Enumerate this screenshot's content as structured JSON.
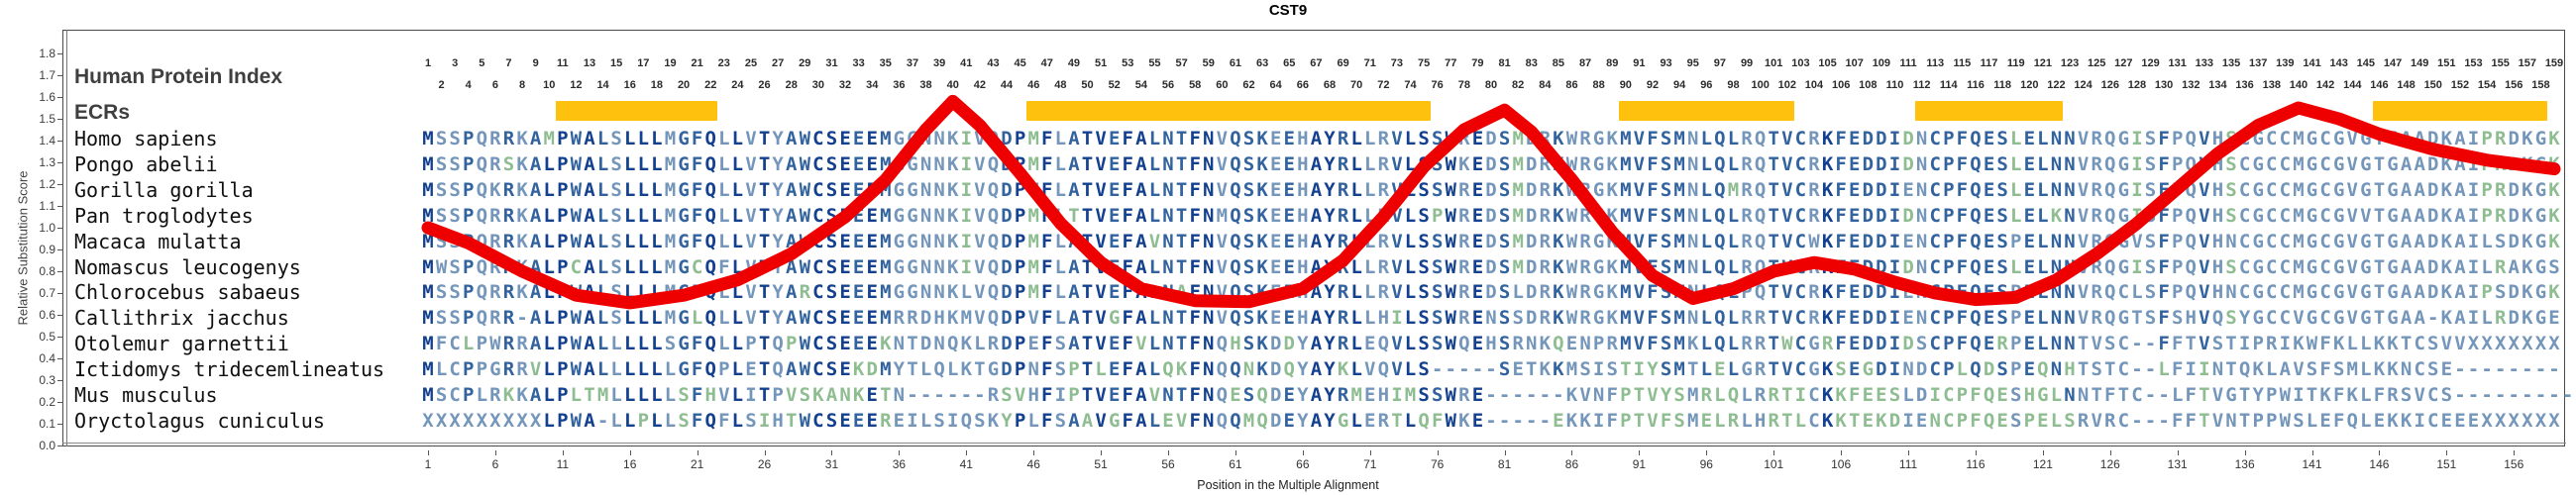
{
  "title": "CST9",
  "header": {
    "protein_index_label": "Human Protein Index",
    "ecrs_label": "ECRs"
  },
  "y_axis": {
    "label": "Relative Substitution Score",
    "ticks": [
      "1.8",
      "1.7",
      "1.6",
      "1.5",
      "1.4",
      "1.3",
      "1.2",
      "1.1",
      "1.0",
      "0.9",
      "0.8",
      "0.7",
      "0.6",
      "0.5",
      "0.4",
      "0.3",
      "0.2",
      "0.1",
      "0.0"
    ]
  },
  "x_axis": {
    "label": "Position in the Multiple Alignment",
    "ticks": [
      1,
      6,
      11,
      16,
      21,
      26,
      31,
      36,
      41,
      46,
      51,
      56,
      61,
      66,
      71,
      76,
      81,
      86,
      91,
      96,
      101,
      106,
      111,
      116,
      121,
      126,
      131,
      136,
      141,
      146,
      151,
      156
    ]
  },
  "position_numbers": {
    "odd": [
      1,
      3,
      5,
      7,
      9,
      11,
      13,
      15,
      17,
      19,
      21,
      23,
      25,
      27,
      29,
      31,
      33,
      35,
      37,
      39,
      41,
      43,
      45,
      47,
      49,
      51,
      53,
      55,
      57,
      59,
      61,
      63,
      65,
      67,
      69,
      71,
      73,
      75,
      77,
      79,
      81,
      83,
      85,
      87,
      89,
      91,
      93,
      95,
      97,
      99,
      101,
      103,
      105,
      107,
      109,
      111,
      113,
      115,
      117,
      119,
      121,
      123,
      125,
      127,
      129,
      131,
      133,
      135,
      137,
      139,
      141,
      143,
      145,
      147,
      149,
      151,
      153,
      155,
      157,
      159
    ],
    "even": [
      2,
      4,
      6,
      8,
      10,
      12,
      14,
      16,
      18,
      20,
      22,
      24,
      26,
      28,
      30,
      32,
      34,
      36,
      38,
      40,
      42,
      44,
      46,
      48,
      50,
      52,
      54,
      56,
      58,
      60,
      62,
      64,
      66,
      68,
      70,
      72,
      74,
      76,
      78,
      80,
      82,
      84,
      86,
      88,
      90,
      92,
      94,
      96,
      98,
      100,
      102,
      104,
      106,
      108,
      110,
      112,
      114,
      116,
      118,
      120,
      122,
      124,
      126,
      128,
      130,
      132,
      134,
      136,
      138,
      140,
      142,
      144,
      146,
      148,
      150,
      152,
      154,
      156,
      158
    ]
  },
  "ecr_bars": [
    {
      "start": 11,
      "end": 22
    },
    {
      "start": 46,
      "end": 75
    },
    {
      "start": 90,
      "end": 102
    },
    {
      "start": 112,
      "end": 122
    },
    {
      "start": 146,
      "end": 158
    }
  ],
  "alignment": {
    "species": [
      {
        "name": "Homo sapiens",
        "sequence": "MSSPQRRKAMPWALSLLLMGFQLLVTYAWCSEEEMGGNNKIVQDPMFLATVEFALNTFNVQSKEEHAYRLLRVLSSWREDSMDRKWRGKMVFSMNLQLRQTVCRKFEDDIDNCPFQESLELNNVRQGISFPQVHSCGCCMGCGVGTGAADKAIPRDKGK"
      },
      {
        "name": "Pongo abelii",
        "sequence": "MSSPQRSKALPWALSLLLMGFQLLVTYAWCSEEEMGGNNKIVQDPMFLATVEFALNTFNVQSKEEHAYRLLRVLSSWKEDSMDRKWRGKMVFSMNLQLRQTVCRKFEDDIDNCPFQESLELNNVRQGISFPQVHSCGCCMGCGVGTGAADKAIPRDKGK"
      },
      {
        "name": "Gorilla gorilla",
        "sequence": "MSSPQKRKALPWALSLLLMGFQLLVTYAWCSEEEMGGNNKIVQDPTFLATVEFALNTFNVQSKEEHAYRLLRVLSSWREDSMDRKWRGKMVFSMNLQMRQTVCRKFEDDIENCPFQESLELNNVRQGISFPQVHSCGCCMGCGVGTGAADKAIPRDKGK"
      },
      {
        "name": "Pan troglodytes",
        "sequence": "MSSPQRRKALPWALSLLLMGFQLLVTYAWCSEEEMGGNNKIVQDPMFLTTVEFALNTFNMQSKEEHAYRLLRVLSPWREDSMDRKWRGKMVFSMNLQLRQTVCRKFEDDIDNCPFQESLELKNVRQGISFPQVHSCGCCMGCGVVTGAADKAIPRDKGK"
      },
      {
        "name": "Macaca mulatta",
        "sequence": "MSSPQRRKALPWALSLLLMGFQLLVTYAWCSEEEMGGNNKIVQDPMFLATVEFAVNTFNVQSKEEHAYRLLRVLSSWREDSMDRKWRGKMVFSMNLQLRQTVCWKFEDDIENCPFQESPELNNVRQGVSFPQVHNCGCCMGCGVGTGAADKAILSDKGK"
      },
      {
        "name": "Nomascus leucogenys",
        "sequence": "MWSPQRRKALPCALSLLLMGCQFLVTYAWCSEEEMGGNNKIVQDPMFLATVEFALNTFNVQSKEEHAYRLLRVLSSWREDSMDRKWRGKMVFSMNLQLRQTVCRKFEDDIDNCPFQESLELNNVRQGISFPQVHSCGCCMGCGVGTGAADKAILRAKGS"
      },
      {
        "name": "Chlorocebus sabaeus",
        "sequence": "MSSPQRRKALPWALSLLLMGFQLLVTYARCSEEEMGGNNKLVQDPMFLATVEFALNAFNVQSKEEHAYRLLRVLSSWREDSLDRKWRGKMVFSMNLQLPQTVCRKFEDDIENCPFQESPELNNVRQCLSFPQVHNCGCCMGCGVGTGAADKAIPSDKGK"
      },
      {
        "name": "Callithrix jacchus",
        "sequence": "MSSPQRR-ALPWALSLLLMGLQLLVTYAWCSEEEMRRDHKMVQDPVFLATVGFALNTFNVQSKEEHAYRLLHILSSWRENSSDRKWRGKMVFSMNLQLRRTVCRKFEDDIENCPFQESPELNNVRQGTSFSHVQSYGCCVGCGVGTGAA-KAILRDKGE"
      },
      {
        "name": "Otolemur garnettii",
        "sequence": "MFCLPWRRALPWALLLLLSGFQLLPTQPWCSEEEKNTDNQKLRDPEFSATVEFVLNTFNQHSKDDYAYRLEQVLSSWQEHSRNKQENPRMVFSMKLQLRRTWCGRFEDDIDSCPFQERPELNNTVSC--FFTVSTIPRIKWFKLLKKTCSVVXXXXXXX"
      },
      {
        "name": "Ictidomys tridecemlineatus",
        "sequence": "MLCPPGRRVLPWALLLLLLGFQPLETQAWCSEKDMYTLQLKTGDPNFSPTLEFALQKFNQQNKDQYAYKLVQVLS-----SETKKMSISTIYSMTLELGRTVCGKSEGDINDCPLQDSPEQNHTSTC--LFIINTQKLAVSFSMLKKNCSE--------"
      },
      {
        "name": "Mus musculus",
        "sequence": "MSCPLRKKALPLTMLLLLLSFHVLITPVSKANKETN------RSVHFIPTVEFAVNTFNQESQDEYAYRMEHIMSSWRE------KVNFPTVYSMRLQLRRTICKKFEESLDICPFQESHGLNNTFTC--LFTVGTYPWITKFKLFRSVCS---------"
      },
      {
        "name": "Oryctolagus cuniculus",
        "sequence": "XXXXXXXXXLPWA-LLPLLSFQFLSIHTWCSEEEREILSIQSKYPLFSAAVGFALEVFNQQMQDEYAYGLERTLQFWKE-----EKKIFPTVFSMELRLHRTLCKKTEKDIENCPFQESPELSRVRC---FFTVNTPPWSLEFQLEKKICEEEXXXXXX"
      }
    ]
  },
  "chart_data": {
    "type": "line",
    "title": "CST9",
    "xlabel": "Position in the Multiple Alignment",
    "ylabel": "Relative Substitution Score",
    "xlim": [
      1,
      159
    ],
    "ylim": [
      0.0,
      1.8
    ],
    "grid": false,
    "series": [
      {
        "name": "relative-substitution-score-curve",
        "points": [
          [
            1,
            1.0
          ],
          [
            4,
            0.93
          ],
          [
            8,
            0.8
          ],
          [
            12,
            0.69
          ],
          [
            16,
            0.655
          ],
          [
            20,
            0.69
          ],
          [
            24,
            0.76
          ],
          [
            28,
            0.88
          ],
          [
            32,
            1.05
          ],
          [
            35,
            1.22
          ],
          [
            38,
            1.45
          ],
          [
            40,
            1.58
          ],
          [
            42,
            1.47
          ],
          [
            45,
            1.25
          ],
          [
            48,
            1.02
          ],
          [
            51,
            0.84
          ],
          [
            54,
            0.72
          ],
          [
            58,
            0.665
          ],
          [
            62,
            0.66
          ],
          [
            66,
            0.72
          ],
          [
            69,
            0.85
          ],
          [
            72,
            1.05
          ],
          [
            75,
            1.28
          ],
          [
            78,
            1.45
          ],
          [
            81,
            1.54
          ],
          [
            83,
            1.44
          ],
          [
            86,
            1.22
          ],
          [
            89,
            0.98
          ],
          [
            92,
            0.78
          ],
          [
            95,
            0.675
          ],
          [
            98,
            0.72
          ],
          [
            101,
            0.8
          ],
          [
            104,
            0.84
          ],
          [
            107,
            0.81
          ],
          [
            110,
            0.75
          ],
          [
            113,
            0.7
          ],
          [
            116,
            0.67
          ],
          [
            119,
            0.68
          ],
          [
            122,
            0.76
          ],
          [
            125,
            0.88
          ],
          [
            128,
            1.02
          ],
          [
            131,
            1.18
          ],
          [
            134,
            1.34
          ],
          [
            137,
            1.47
          ],
          [
            140,
            1.55
          ],
          [
            143,
            1.5
          ],
          [
            146,
            1.43
          ],
          [
            150,
            1.36
          ],
          [
            154,
            1.31
          ],
          [
            159,
            1.27
          ]
        ]
      }
    ],
    "ecr_regions": [
      [
        11,
        22
      ],
      [
        46,
        75
      ],
      [
        90,
        102
      ],
      [
        112,
        122
      ],
      [
        146,
        158
      ]
    ]
  },
  "colors": {
    "ecr_bar": "#FEC20E",
    "curve": "#EE0000",
    "seq_conserved": "#14418F",
    "seq_moderate": "#32639F",
    "seq_variable": "#7496BA",
    "seq_divergent": "#8FBD92",
    "border": "#4A4A4A"
  }
}
